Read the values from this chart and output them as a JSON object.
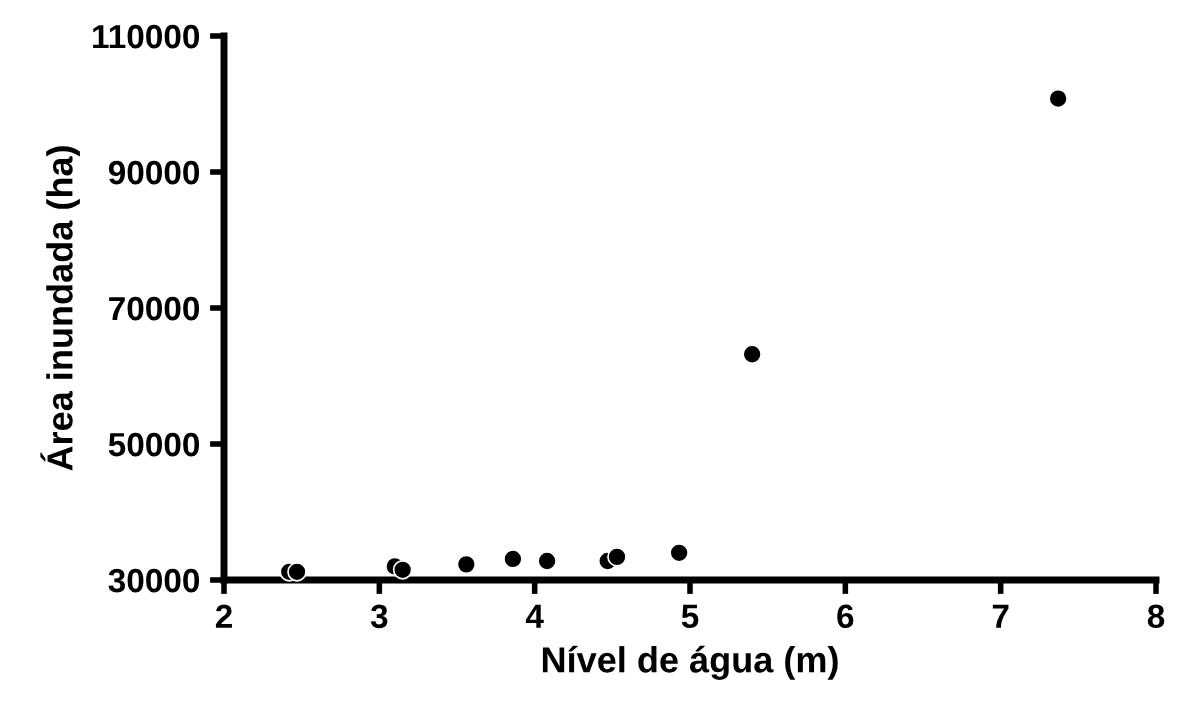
{
  "chart_data": {
    "type": "scatter",
    "xlabel": "Nível de água (m)",
    "ylabel": "Área inundada (ha)",
    "x": [
      2.42,
      2.47,
      3.1,
      3.15,
      3.56,
      3.86,
      4.08,
      4.47,
      4.53,
      4.93,
      5.4,
      7.37
    ],
    "values": [
      31200,
      31200,
      32000,
      31500,
      32300,
      33100,
      32800,
      32800,
      33400,
      34000,
      63200,
      100800
    ],
    "color": "#000000",
    "marker": "circle",
    "grid": false,
    "legend": false,
    "xlim": [
      2,
      8
    ],
    "xticks": [
      2,
      3,
      4,
      5,
      6,
      7,
      8
    ],
    "ylim": [
      30000,
      110000
    ],
    "yticks": [
      30000,
      50000,
      70000,
      90000,
      110000
    ]
  }
}
